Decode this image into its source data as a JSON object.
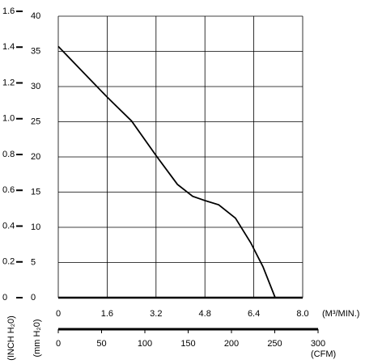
{
  "chart_data": {
    "type": "line",
    "x_label": "(M³/MIN.)",
    "x2_label": "(CFM)",
    "y_label": "(mm H₂0)",
    "y2_label": "(INCH H₂0)",
    "x": [
      0,
      0.8,
      1.6,
      2.4,
      3.2,
      3.9,
      4.4,
      4.8,
      5.25,
      5.8,
      6.3,
      6.7,
      7.1
    ],
    "series": [
      {
        "color": "#000000",
        "values": [
          35.7,
          32.1,
          28.5,
          25.1,
          20.2,
          16.1,
          14.4,
          13.8,
          13.2,
          11.3,
          7.8,
          4.4,
          0
        ]
      }
    ],
    "xlim": [
      0,
      8
    ],
    "xticks": [
      0,
      1.6,
      3.2,
      4.8,
      6.4,
      {
        "value": 8,
        "label": "8.0"
      }
    ],
    "ylim": [
      0,
      40
    ],
    "yticks": [
      0,
      5,
      10,
      15,
      20,
      25,
      30,
      35,
      40
    ],
    "y2lim": [
      0,
      1.6
    ],
    "y2ticks": [
      0,
      0.2,
      0.4,
      0.6,
      0.8,
      {
        "value": 1,
        "label": "1.0"
      },
      1.2,
      1.4,
      1.6
    ],
    "x2lim": [
      0,
      300
    ],
    "x2ticks": [
      0,
      50,
      100,
      150,
      200,
      250,
      300
    ],
    "grid": true
  }
}
